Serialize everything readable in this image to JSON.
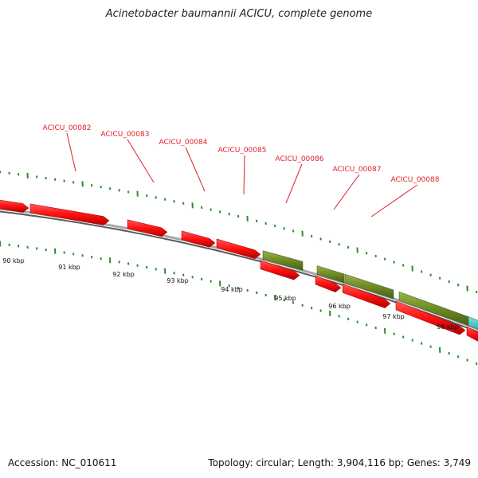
{
  "title": "Acinetobacter baumannii ACICU, complete genome",
  "footer": {
    "accession": "Accession: NC_010611",
    "summary": "Topology: circular; Length: 3,904,116 bp; Genes: 3,749"
  },
  "scale_labels": [
    "90 kbp",
    "91 kbp",
    "92 kbp",
    "93 kbp",
    "94 kbp",
    "95 kbp",
    "96 kbp",
    "97 kbp",
    "98 kbp"
  ],
  "gene_labels": [
    "ACICU_00082",
    "ACICU_00083",
    "ACICU_00084",
    "ACICU_00085",
    "ACICU_00086",
    "ACICU_00087",
    "ACICU_00088"
  ],
  "colors": {
    "forward_gene": "#ff1010",
    "reverse_gene": "#6e8a24",
    "other_feature": "#22c8c8",
    "backbone": "#808080",
    "ticks": "#2e8b2e",
    "label": "#e0202a"
  }
}
